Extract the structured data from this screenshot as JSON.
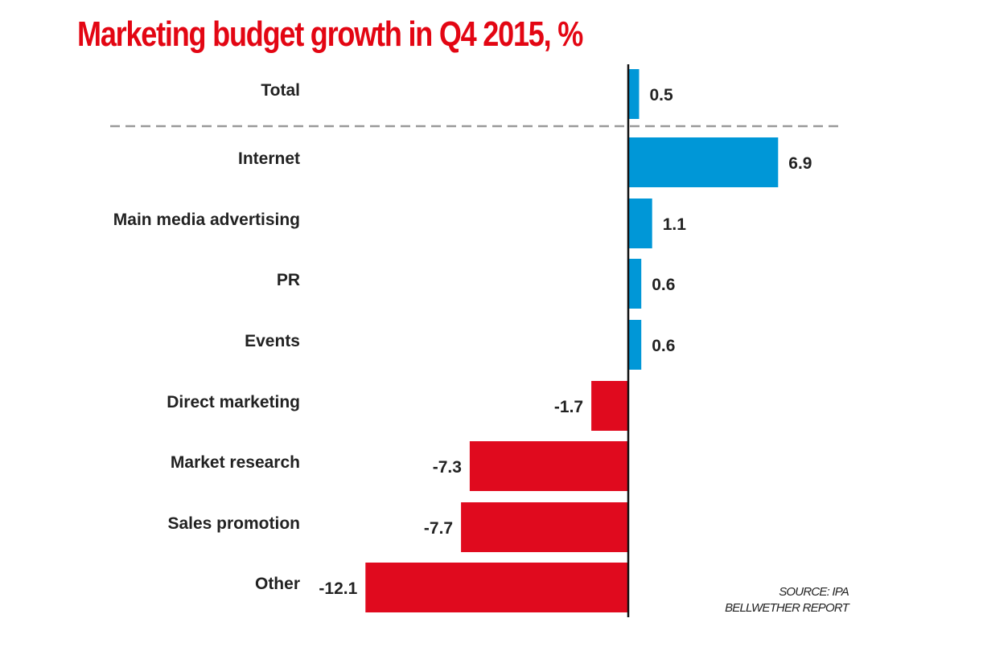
{
  "chart_data": {
    "type": "bar",
    "orientation": "horizontal",
    "title": "Marketing budget growth in Q4 2015, %",
    "categories": [
      "Total",
      "Internet",
      "Main media advertising",
      "PR",
      "Events",
      "Direct marketing",
      "Market research",
      "Sales promotion",
      "Other"
    ],
    "values": [
      0.5,
      6.9,
      1.1,
      0.6,
      0.6,
      -1.7,
      -7.3,
      -7.7,
      -12.1
    ],
    "value_labels": [
      "0.5",
      "6.9",
      "1.1",
      "0.6",
      "0.6",
      "-1.7",
      "-7.3",
      "-7.7",
      "-12.1"
    ],
    "separator_after": "Total",
    "colors": {
      "positive": "#0097d7",
      "negative": "#e00a1e",
      "title": "#e30613",
      "axis": "#111111",
      "separator": "#999999"
    },
    "grid": false,
    "source": [
      "SOURCE: IPA",
      "BELLWETHER REPORT"
    ]
  }
}
